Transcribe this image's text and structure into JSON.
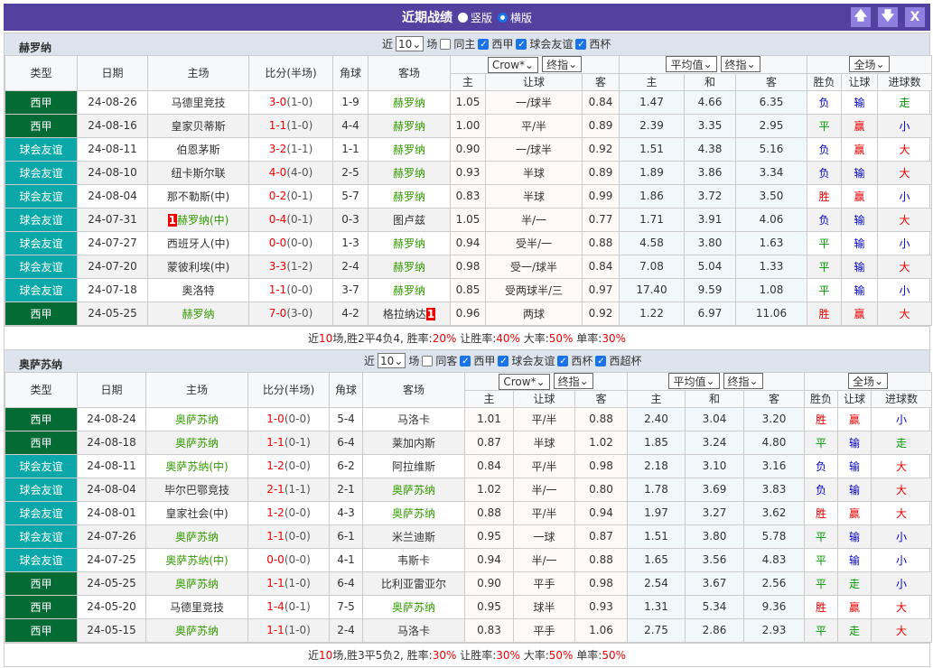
{
  "title": "近期战绩",
  "view_options": [
    {
      "label": "竖版",
      "selected": false
    },
    {
      "label": "横版",
      "selected": true
    }
  ],
  "window_buttons": [
    {
      "icon": "arrow-up-icon",
      "glyph": "🡅"
    },
    {
      "icon": "arrow-down-icon",
      "glyph": "🡇"
    },
    {
      "icon": "close-icon",
      "glyph": "X"
    }
  ],
  "colors": {
    "titlebar": "#5341a0",
    "laliga": "#056b35",
    "friendly": "#0aa8a8",
    "win": "#e00",
    "draw": "#090",
    "loss": "#00c"
  },
  "headers": {
    "type": "类型",
    "date": "日期",
    "home": "主场",
    "score": "比分(半场)",
    "corner": "角球",
    "away": "客场",
    "company": "Crow*",
    "odds_time": "终指",
    "avg": "平均值",
    "odds_time2": "终指",
    "scope": "全场",
    "h": "主",
    "handicap": "让球",
    "a": "客",
    "eh": "主",
    "ed": "和",
    "ea": "客",
    "wl": "胜负",
    "hc": "让球",
    "goals": "进球数"
  },
  "sections": [
    {
      "team": "赫罗纳",
      "filter": {
        "near": "近",
        "count": "10",
        "unit": "场",
        "same": "同主",
        "same_checked": false,
        "leagues": [
          "西甲",
          "球会友谊",
          "西杯"
        ]
      },
      "rows": [
        [
          "西甲",
          "24-08-26",
          "马德里竞技",
          "3-0",
          "(1-0)",
          "1-9",
          "赫罗纳",
          "1.05",
          "一/球半",
          "0.84",
          "1.47",
          "4.66",
          "6.35",
          "负",
          "输",
          "走",
          "away",
          ""
        ],
        [
          "西甲",
          "24-08-16",
          "皇家贝蒂斯",
          "1-1",
          "(1-0)",
          "4-4",
          "赫罗纳",
          "1.00",
          "平/半",
          "0.89",
          "2.39",
          "3.35",
          "2.95",
          "平",
          "赢",
          "小",
          "away",
          ""
        ],
        [
          "球会友谊",
          "24-08-11",
          "伯恩茅斯",
          "3-2",
          "(1-1)",
          "1-1",
          "赫罗纳",
          "0.90",
          "一/球半",
          "0.92",
          "1.51",
          "4.38",
          "5.16",
          "负",
          "赢",
          "大",
          "away",
          ""
        ],
        [
          "球会友谊",
          "24-08-10",
          "纽卡斯尔联",
          "4-0",
          "(4-0)",
          "2-5",
          "赫罗纳",
          "0.93",
          "半球",
          "0.89",
          "1.89",
          "3.86",
          "3.34",
          "负",
          "输",
          "大",
          "away",
          ""
        ],
        [
          "球会友谊",
          "24-08-04",
          "那不勒斯(中)",
          "0-2",
          "(0-1)",
          "5-7",
          "赫罗纳",
          "0.83",
          "半球",
          "0.99",
          "1.86",
          "3.72",
          "3.50",
          "胜",
          "赢",
          "小",
          "away",
          ""
        ],
        [
          "球会友谊",
          "24-07-31",
          "赫罗纳(中)",
          "0-4",
          "(0-1)",
          "0-3",
          "图卢兹",
          "1.05",
          "半/一",
          "0.77",
          "1.71",
          "3.91",
          "4.06",
          "负",
          "输",
          "大",
          "home",
          "home:1"
        ],
        [
          "球会友谊",
          "24-07-27",
          "西班牙人(中)",
          "0-0",
          "(0-0)",
          "1-3",
          "赫罗纳",
          "0.94",
          "受半/一",
          "0.88",
          "4.58",
          "3.80",
          "1.63",
          "平",
          "输",
          "小",
          "away",
          ""
        ],
        [
          "球会友谊",
          "24-07-20",
          "蒙彼利埃(中)",
          "3-3",
          "(1-2)",
          "2-4",
          "赫罗纳",
          "0.98",
          "受一/球半",
          "0.84",
          "7.08",
          "5.04",
          "1.33",
          "平",
          "输",
          "大",
          "away",
          ""
        ],
        [
          "球会友谊",
          "24-07-18",
          "奥洛特",
          "1-1",
          "(0-0)",
          "3-7",
          "赫罗纳",
          "0.85",
          "受两球半/三",
          "0.97",
          "17.40",
          "9.59",
          "1.08",
          "平",
          "输",
          "小",
          "away",
          ""
        ],
        [
          "西甲",
          "24-05-25",
          "赫罗纳",
          "7-0",
          "(3-0)",
          "4-2",
          "格拉纳达",
          "0.96",
          "两球",
          "0.92",
          "1.22",
          "6.97",
          "11.06",
          "胜",
          "赢",
          "大",
          "home",
          "away:1"
        ]
      ],
      "summary": {
        "a": "近",
        "n": "10",
        "b": "场,胜2平4负4, 胜率:",
        "win": "20%",
        "c": " 让胜率:",
        "hwin": "40%",
        "d": " 大率:",
        "big": "50%",
        "e": " 单率:",
        "odd": "30%"
      }
    },
    {
      "team": "奥萨苏纳",
      "filter": {
        "near": "近",
        "count": "10",
        "unit": "场",
        "same": "同客",
        "same_checked": false,
        "leagues": [
          "西甲",
          "球会友谊",
          "西杯",
          "西超杯"
        ]
      },
      "rows": [
        [
          "西甲",
          "24-08-24",
          "奥萨苏纳",
          "1-0",
          "(0-0)",
          "5-4",
          "马洛卡",
          "1.01",
          "平/半",
          "0.88",
          "2.40",
          "3.04",
          "3.20",
          "胜",
          "赢",
          "小",
          "home",
          ""
        ],
        [
          "西甲",
          "24-08-18",
          "奥萨苏纳",
          "1-1",
          "(0-1)",
          "6-4",
          "莱加内斯",
          "0.87",
          "半球",
          "1.02",
          "1.85",
          "3.24",
          "4.80",
          "平",
          "输",
          "走",
          "home",
          ""
        ],
        [
          "球会友谊",
          "24-08-11",
          "奥萨苏纳(中)",
          "1-2",
          "(0-0)",
          "6-2",
          "阿拉维斯",
          "0.84",
          "平/半",
          "0.98",
          "2.18",
          "3.10",
          "3.16",
          "负",
          "输",
          "大",
          "home",
          ""
        ],
        [
          "球会友谊",
          "24-08-04",
          "毕尔巴鄂竞技",
          "2-1",
          "(1-1)",
          "2-1",
          "奥萨苏纳",
          "1.02",
          "半/一",
          "0.80",
          "1.78",
          "3.69",
          "3.83",
          "负",
          "输",
          "大",
          "away",
          ""
        ],
        [
          "球会友谊",
          "24-08-01",
          "皇家社会(中)",
          "1-2",
          "(0-0)",
          "4-3",
          "奥萨苏纳",
          "0.88",
          "平/半",
          "0.94",
          "1.97",
          "3.27",
          "3.62",
          "胜",
          "赢",
          "大",
          "away",
          ""
        ],
        [
          "球会友谊",
          "24-07-26",
          "奥萨苏纳",
          "1-1",
          "(0-0)",
          "6-1",
          "米兰迪斯",
          "0.95",
          "一球",
          "0.87",
          "1.51",
          "3.80",
          "5.78",
          "平",
          "输",
          "小",
          "home",
          ""
        ],
        [
          "球会友谊",
          "24-07-25",
          "奥萨苏纳(中)",
          "0-0",
          "(0-0)",
          "4-1",
          "韦斯卡",
          "0.94",
          "半/一",
          "0.88",
          "1.65",
          "3.56",
          "4.83",
          "平",
          "输",
          "小",
          "home",
          ""
        ],
        [
          "西甲",
          "24-05-25",
          "奥萨苏纳",
          "1-1",
          "(1-0)",
          "6-4",
          "比利亚雷亚尔",
          "0.90",
          "平手",
          "0.98",
          "2.54",
          "3.67",
          "2.56",
          "平",
          "走",
          "小",
          "home",
          ""
        ],
        [
          "西甲",
          "24-05-20",
          "马德里竞技",
          "1-4",
          "(0-1)",
          "7-5",
          "奥萨苏纳",
          "0.95",
          "球半",
          "0.93",
          "1.31",
          "5.34",
          "9.36",
          "胜",
          "赢",
          "大",
          "away",
          ""
        ],
        [
          "西甲",
          "24-05-15",
          "奥萨苏纳",
          "1-1",
          "(1-0)",
          "2-4",
          "马洛卡",
          "0.83",
          "平手",
          "1.06",
          "2.75",
          "2.86",
          "2.93",
          "平",
          "走",
          "大",
          "home",
          ""
        ]
      ],
      "summary": {
        "a": "近",
        "n": "10",
        "b": "场,胜3平5负2, 胜率:",
        "win": "30%",
        "c": " 让胜率:",
        "hwin": "30%",
        "d": " 大率:",
        "big": "50%",
        "e": " 单率:",
        "odd": "50%"
      }
    }
  ]
}
